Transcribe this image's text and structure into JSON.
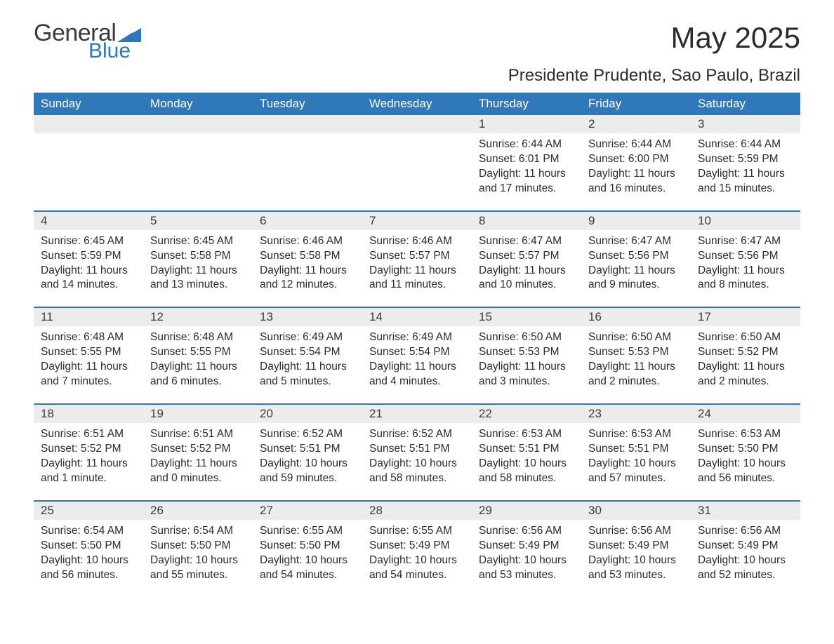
{
  "brand": {
    "word1": "General",
    "word2": "Blue",
    "wedge_color": "#2f78b9"
  },
  "title": "May 2025",
  "location": "Presidente Prudente, Sao Paulo, Brazil",
  "colors": {
    "header_bg": "#2f78b9",
    "header_text": "#ffffff",
    "row_divider": "#2f78b9",
    "daynum_bg": "#ececec",
    "body_text": "#2b2b2b"
  },
  "typography": {
    "title_fontsize": 42,
    "location_fontsize": 24,
    "header_fontsize": 17,
    "daynum_fontsize": 17,
    "detail_fontsize": 15.5
  },
  "weekdays": [
    "Sunday",
    "Monday",
    "Tuesday",
    "Wednesday",
    "Thursday",
    "Friday",
    "Saturday"
  ],
  "labels": {
    "sunrise": "Sunrise",
    "sunset": "Sunset",
    "daylight": "Daylight"
  },
  "weeks": [
    [
      null,
      null,
      null,
      null,
      {
        "day": "1",
        "sunrise": "6:44 AM",
        "sunset": "6:01 PM",
        "daylight": "11 hours and 17 minutes."
      },
      {
        "day": "2",
        "sunrise": "6:44 AM",
        "sunset": "6:00 PM",
        "daylight": "11 hours and 16 minutes."
      },
      {
        "day": "3",
        "sunrise": "6:44 AM",
        "sunset": "5:59 PM",
        "daylight": "11 hours and 15 minutes."
      }
    ],
    [
      {
        "day": "4",
        "sunrise": "6:45 AM",
        "sunset": "5:59 PM",
        "daylight": "11 hours and 14 minutes."
      },
      {
        "day": "5",
        "sunrise": "6:45 AM",
        "sunset": "5:58 PM",
        "daylight": "11 hours and 13 minutes."
      },
      {
        "day": "6",
        "sunrise": "6:46 AM",
        "sunset": "5:58 PM",
        "daylight": "11 hours and 12 minutes."
      },
      {
        "day": "7",
        "sunrise": "6:46 AM",
        "sunset": "5:57 PM",
        "daylight": "11 hours and 11 minutes."
      },
      {
        "day": "8",
        "sunrise": "6:47 AM",
        "sunset": "5:57 PM",
        "daylight": "11 hours and 10 minutes."
      },
      {
        "day": "9",
        "sunrise": "6:47 AM",
        "sunset": "5:56 PM",
        "daylight": "11 hours and 9 minutes."
      },
      {
        "day": "10",
        "sunrise": "6:47 AM",
        "sunset": "5:56 PM",
        "daylight": "11 hours and 8 minutes."
      }
    ],
    [
      {
        "day": "11",
        "sunrise": "6:48 AM",
        "sunset": "5:55 PM",
        "daylight": "11 hours and 7 minutes."
      },
      {
        "day": "12",
        "sunrise": "6:48 AM",
        "sunset": "5:55 PM",
        "daylight": "11 hours and 6 minutes."
      },
      {
        "day": "13",
        "sunrise": "6:49 AM",
        "sunset": "5:54 PM",
        "daylight": "11 hours and 5 minutes."
      },
      {
        "day": "14",
        "sunrise": "6:49 AM",
        "sunset": "5:54 PM",
        "daylight": "11 hours and 4 minutes."
      },
      {
        "day": "15",
        "sunrise": "6:50 AM",
        "sunset": "5:53 PM",
        "daylight": "11 hours and 3 minutes."
      },
      {
        "day": "16",
        "sunrise": "6:50 AM",
        "sunset": "5:53 PM",
        "daylight": "11 hours and 2 minutes."
      },
      {
        "day": "17",
        "sunrise": "6:50 AM",
        "sunset": "5:52 PM",
        "daylight": "11 hours and 2 minutes."
      }
    ],
    [
      {
        "day": "18",
        "sunrise": "6:51 AM",
        "sunset": "5:52 PM",
        "daylight": "11 hours and 1 minute."
      },
      {
        "day": "19",
        "sunrise": "6:51 AM",
        "sunset": "5:52 PM",
        "daylight": "11 hours and 0 minutes."
      },
      {
        "day": "20",
        "sunrise": "6:52 AM",
        "sunset": "5:51 PM",
        "daylight": "10 hours and 59 minutes."
      },
      {
        "day": "21",
        "sunrise": "6:52 AM",
        "sunset": "5:51 PM",
        "daylight": "10 hours and 58 minutes."
      },
      {
        "day": "22",
        "sunrise": "6:53 AM",
        "sunset": "5:51 PM",
        "daylight": "10 hours and 58 minutes."
      },
      {
        "day": "23",
        "sunrise": "6:53 AM",
        "sunset": "5:51 PM",
        "daylight": "10 hours and 57 minutes."
      },
      {
        "day": "24",
        "sunrise": "6:53 AM",
        "sunset": "5:50 PM",
        "daylight": "10 hours and 56 minutes."
      }
    ],
    [
      {
        "day": "25",
        "sunrise": "6:54 AM",
        "sunset": "5:50 PM",
        "daylight": "10 hours and 56 minutes."
      },
      {
        "day": "26",
        "sunrise": "6:54 AM",
        "sunset": "5:50 PM",
        "daylight": "10 hours and 55 minutes."
      },
      {
        "day": "27",
        "sunrise": "6:55 AM",
        "sunset": "5:50 PM",
        "daylight": "10 hours and 54 minutes."
      },
      {
        "day": "28",
        "sunrise": "6:55 AM",
        "sunset": "5:49 PM",
        "daylight": "10 hours and 54 minutes."
      },
      {
        "day": "29",
        "sunrise": "6:56 AM",
        "sunset": "5:49 PM",
        "daylight": "10 hours and 53 minutes."
      },
      {
        "day": "30",
        "sunrise": "6:56 AM",
        "sunset": "5:49 PM",
        "daylight": "10 hours and 53 minutes."
      },
      {
        "day": "31",
        "sunrise": "6:56 AM",
        "sunset": "5:49 PM",
        "daylight": "10 hours and 52 minutes."
      }
    ]
  ]
}
